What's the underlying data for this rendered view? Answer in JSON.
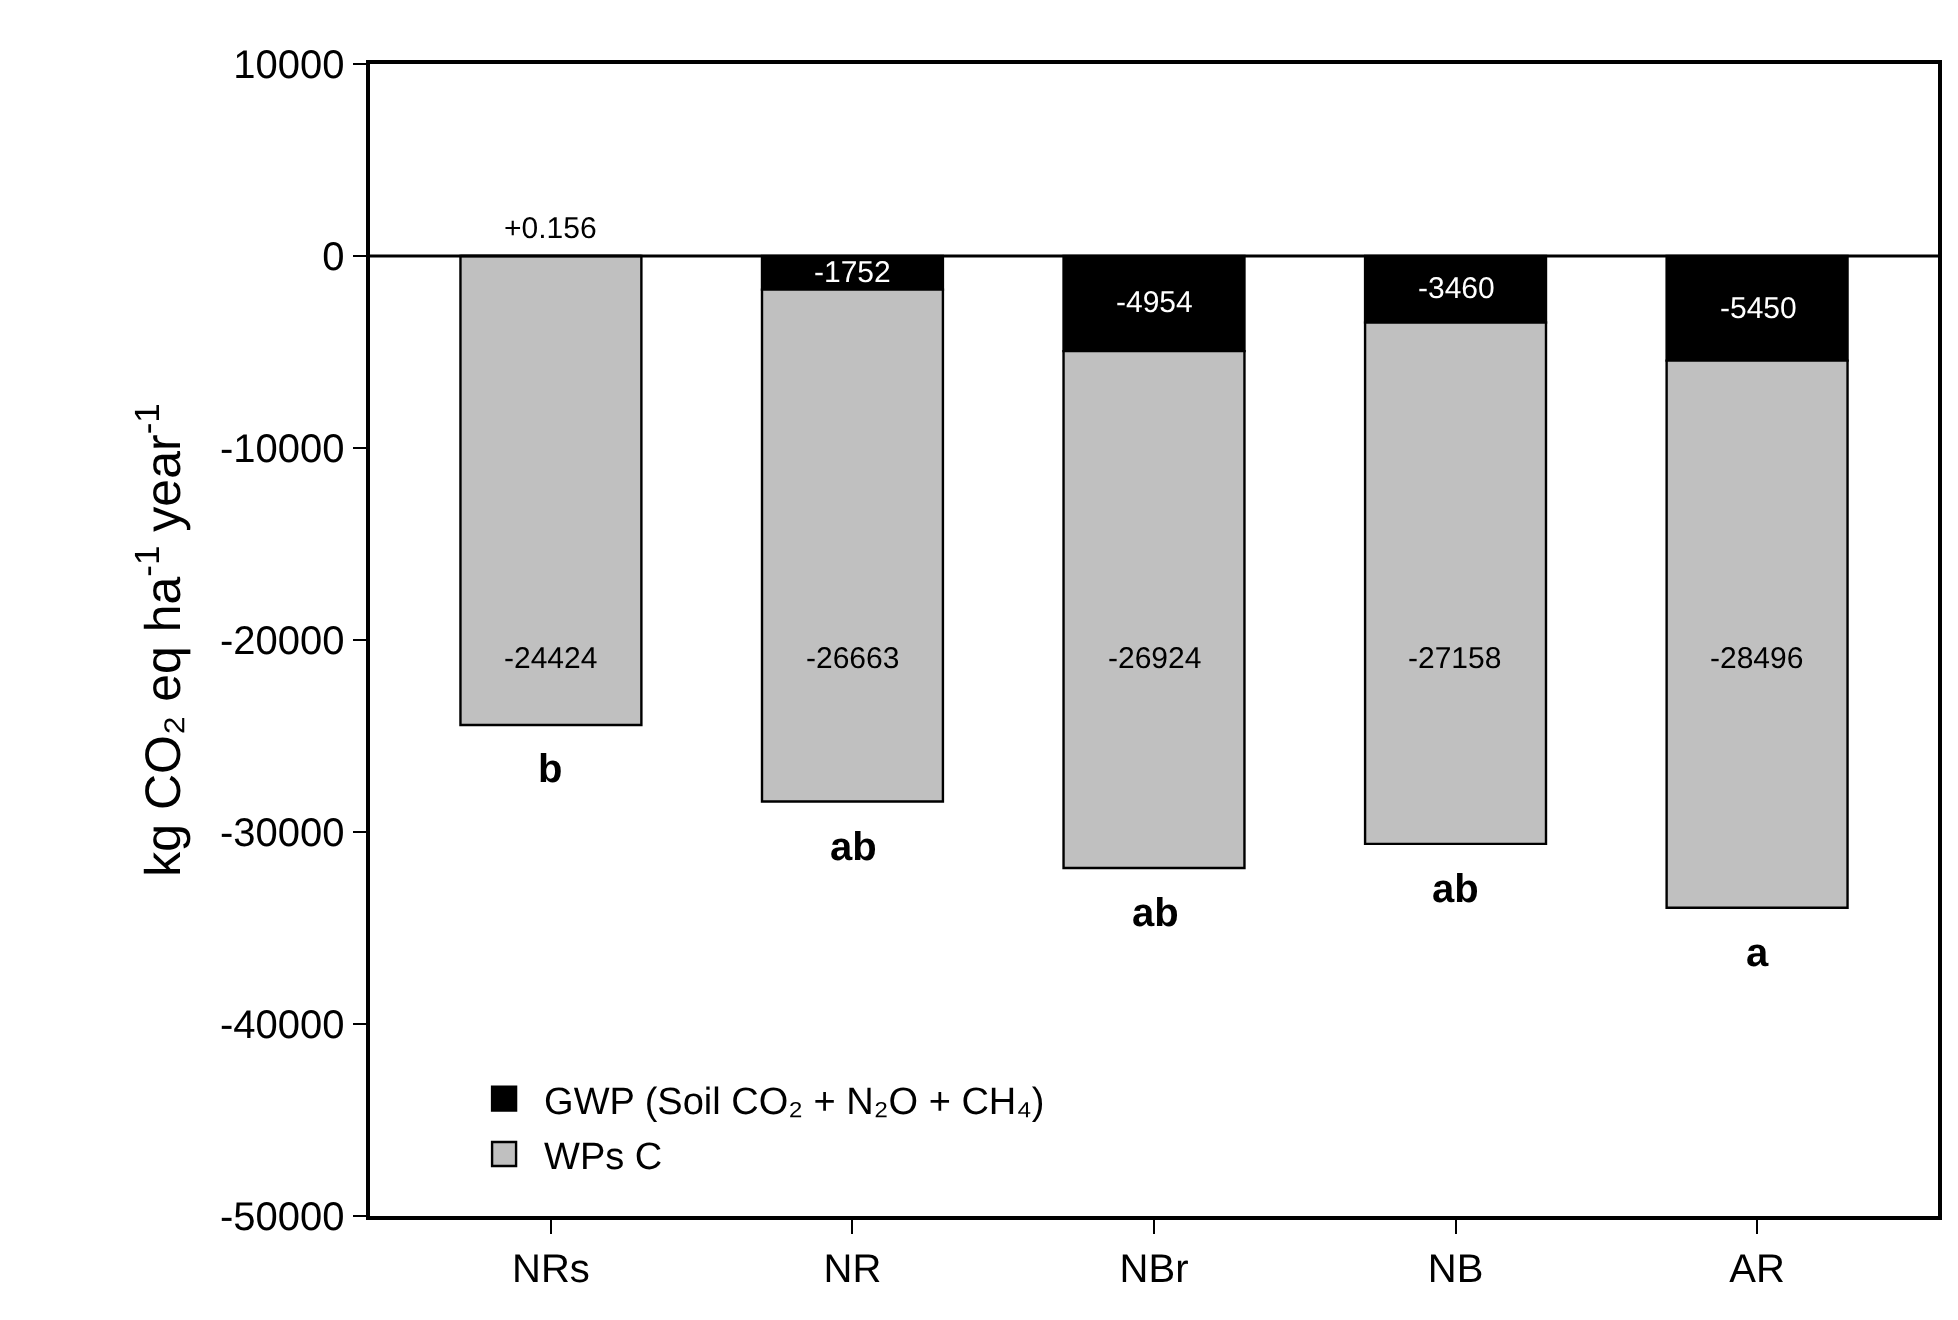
{
  "chart_data": {
    "type": "bar",
    "stacked": true,
    "ylabel": "kg CO₂ eq ha$^{-1}$ year$^{-1}$",
    "categories": [
      "NRs",
      "NR",
      "NBr",
      "NB",
      "AR"
    ],
    "series": [
      {
        "name": "GWP (Soil CO₂ + N₂O + CH₄)",
        "color": "#000000",
        "values": [
          0.156,
          -1752,
          -4954,
          -3460,
          -5450
        ],
        "value_labels": [
          "+0.156",
          "-1752",
          "-4954",
          "-3460",
          "-5450"
        ]
      },
      {
        "name": "WPs C",
        "color": "#c0c0c0",
        "values": [
          -24424,
          -26663,
          -26924,
          -27158,
          -28496
        ],
        "value_labels": [
          "-24424",
          "-26663",
          "-26924",
          "-27158",
          "-28496"
        ]
      }
    ],
    "annotations": [
      {
        "text": "b",
        "x": "NRs",
        "y": -24424
      },
      {
        "text": "ab",
        "x": "NR",
        "y": -28415
      },
      {
        "text": "ab",
        "x": "NBr",
        "y": -31878
      },
      {
        "text": "ab",
        "x": "NB",
        "y": -30618
      },
      {
        "text": "a",
        "x": "AR",
        "y": -33946
      }
    ],
    "ref_lines": [
      {
        "axis": "y",
        "value": 0
      }
    ],
    "ylim": [
      -50000,
      10000
    ],
    "yticks": [
      -50000,
      -40000,
      -30000,
      -20000,
      -10000,
      0,
      10000
    ],
    "legend": "bottom left"
  }
}
